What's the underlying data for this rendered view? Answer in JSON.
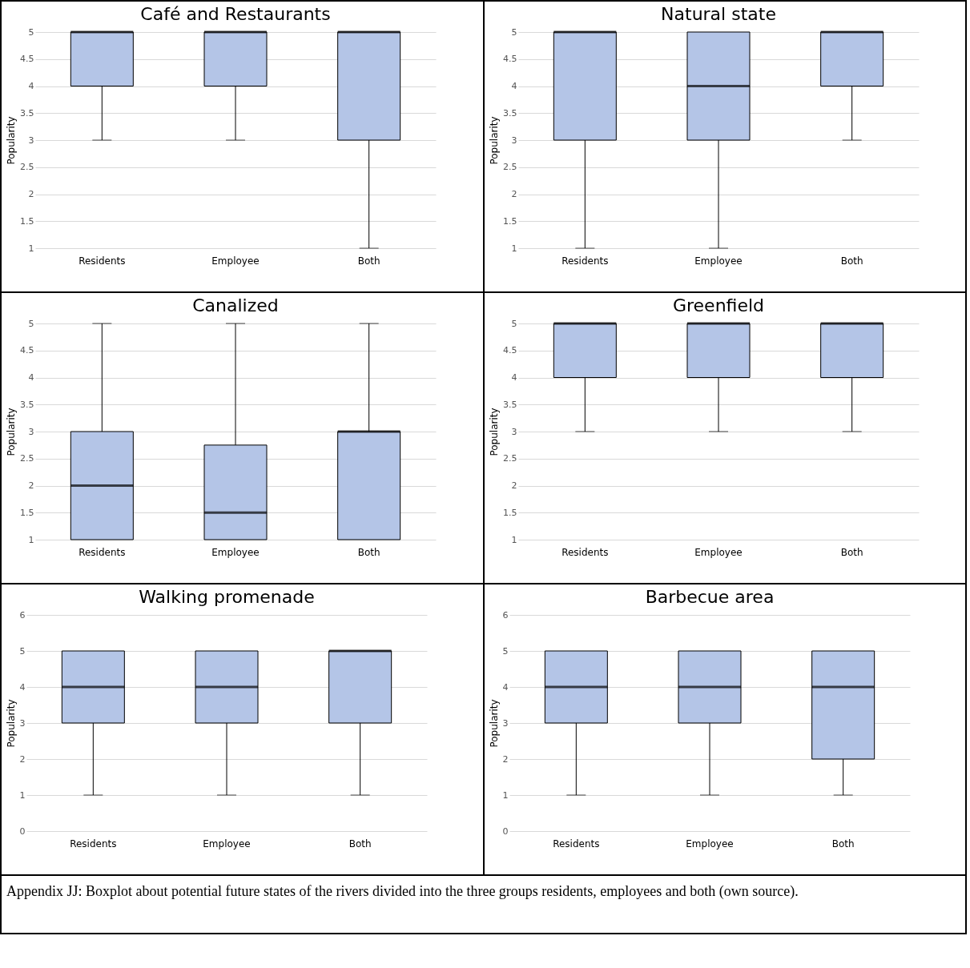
{
  "chart_data": [
    {
      "type": "box",
      "title": "Café and Restaurants",
      "ylabel": "Popularity",
      "categories": [
        "Residents",
        "Employee",
        "Both"
      ],
      "color": "#b4c5e7",
      "grid": true,
      "ylim": [
        1,
        5
      ],
      "yticks": [
        1,
        1.5,
        2,
        2.5,
        3,
        3.5,
        4,
        4.5,
        5
      ],
      "boxes": [
        {
          "low": 3,
          "q1": 4,
          "median": 5,
          "q3": 5,
          "high": 5
        },
        {
          "low": 3,
          "q1": 4,
          "median": 5,
          "q3": 5,
          "high": 5
        },
        {
          "low": 1,
          "q1": 3,
          "median": 5,
          "q3": 5,
          "high": 5
        }
      ]
    },
    {
      "type": "box",
      "title": "Natural state",
      "ylabel": "Popularity",
      "categories": [
        "Residents",
        "Employee",
        "Both"
      ],
      "color": "#b4c5e7",
      "grid": true,
      "ylim": [
        1,
        5
      ],
      "yticks": [
        1,
        1.5,
        2,
        2.5,
        3,
        3.5,
        4,
        4.5,
        5
      ],
      "boxes": [
        {
          "low": 1,
          "q1": 3,
          "median": 5,
          "q3": 5,
          "high": 5
        },
        {
          "low": 1,
          "q1": 3,
          "median": 4,
          "q3": 5,
          "high": 5
        },
        {
          "low": 3,
          "q1": 4,
          "median": 5,
          "q3": 5,
          "high": 5
        }
      ]
    },
    {
      "type": "box",
      "title": "Canalized",
      "ylabel": "Popularity",
      "categories": [
        "Residents",
        "Employee",
        "Both"
      ],
      "color": "#b4c5e7",
      "grid": true,
      "ylim": [
        1,
        5
      ],
      "yticks": [
        1,
        1.5,
        2,
        2.5,
        3,
        3.5,
        4,
        4.5,
        5
      ],
      "boxes": [
        {
          "low": 1,
          "q1": 1,
          "median": 2,
          "q3": 3,
          "high": 5
        },
        {
          "low": 1,
          "q1": 1,
          "median": 1.5,
          "q3": 2.75,
          "high": 5
        },
        {
          "low": 1,
          "q1": 1,
          "median": 3,
          "q3": 3,
          "high": 5
        }
      ]
    },
    {
      "type": "box",
      "title": "Greenfield",
      "ylabel": "Popularity",
      "categories": [
        "Residents",
        "Employee",
        "Both"
      ],
      "color": "#b4c5e7",
      "grid": true,
      "ylim": [
        1,
        5
      ],
      "yticks": [
        1,
        1.5,
        2,
        2.5,
        3,
        3.5,
        4,
        4.5,
        5
      ],
      "boxes": [
        {
          "low": 3,
          "q1": 4,
          "median": 5,
          "q3": 5,
          "high": 5
        },
        {
          "low": 3,
          "q1": 4,
          "median": 5,
          "q3": 5,
          "high": 5
        },
        {
          "low": 3,
          "q1": 4,
          "median": 5,
          "q3": 5,
          "high": 5
        }
      ]
    },
    {
      "type": "box",
      "title": "Walking promenade",
      "ylabel": "Popularity",
      "categories": [
        "Residents",
        "Employee",
        "Both"
      ],
      "color": "#b4c5e7",
      "grid": true,
      "ylim": [
        0,
        6
      ],
      "yticks": [
        0,
        1,
        2,
        3,
        4,
        5,
        6
      ],
      "boxes": [
        {
          "low": 1,
          "q1": 3,
          "median": 4,
          "q3": 5,
          "high": 5
        },
        {
          "low": 1,
          "q1": 3,
          "median": 4,
          "q3": 5,
          "high": 5
        },
        {
          "low": 1,
          "q1": 3,
          "median": 5,
          "q3": 5,
          "high": 5
        }
      ]
    },
    {
      "type": "box",
      "title": "Barbecue area",
      "ylabel": "Popularity",
      "categories": [
        "Residents",
        "Employee",
        "Both"
      ],
      "color": "#b4c5e7",
      "grid": true,
      "ylim": [
        0,
        6
      ],
      "yticks": [
        0,
        1,
        2,
        3,
        4,
        5,
        6
      ],
      "boxes": [
        {
          "low": 1,
          "q1": 3,
          "median": 4,
          "q3": 5,
          "high": 5
        },
        {
          "low": 1,
          "q1": 3,
          "median": 4,
          "q3": 5,
          "high": 5
        },
        {
          "low": 1,
          "q1": 2,
          "median": 4,
          "q3": 5,
          "high": 5
        }
      ],
      "annotations": [
        "Appendix JJ: Boxplot about potential future states of the rivers divided into the three groups residents, employees and both (own source)."
      ]
    }
  ]
}
